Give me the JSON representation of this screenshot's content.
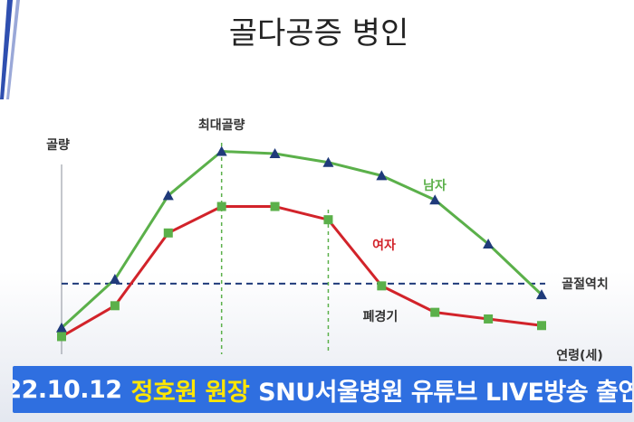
{
  "title": "골다공증 병인",
  "caption": {
    "date": "22.10.12",
    "highlight": "정호원 원장",
    "rest": "SNU서울병원 유튜브 LIVE방송 출연"
  },
  "colors": {
    "male": "#5bb04a",
    "female": "#d2232a",
    "marker_male": "#1f3a7a",
    "marker_female": "#5bb04a",
    "fracture_line": "#1f3a7a",
    "caption_bg": "#2f6fe0",
    "caption_highlight": "#ffe600"
  },
  "chart_data": {
    "type": "line",
    "ylabel": "골량",
    "xlabel": "연령(세)",
    "x": [
      0,
      10,
      20,
      30,
      40,
      50,
      60,
      70,
      80,
      90
    ],
    "xlim": [
      0,
      90
    ],
    "ylim": [
      0,
      100
    ],
    "series": [
      {
        "name": "남자",
        "values": [
          12,
          34,
          72,
          92,
          91,
          87,
          81,
          70,
          50,
          27
        ]
      },
      {
        "name": "여자",
        "values": [
          8,
          22,
          55,
          67,
          67,
          61,
          31,
          19,
          16,
          13
        ]
      }
    ],
    "reference_lines": [
      {
        "label": "골절역치",
        "orientation": "horizontal",
        "value": 32
      },
      {
        "label": "최대골량",
        "orientation": "vertical",
        "value": 30
      },
      {
        "label": "폐경기",
        "orientation": "vertical",
        "value": 50
      }
    ]
  }
}
